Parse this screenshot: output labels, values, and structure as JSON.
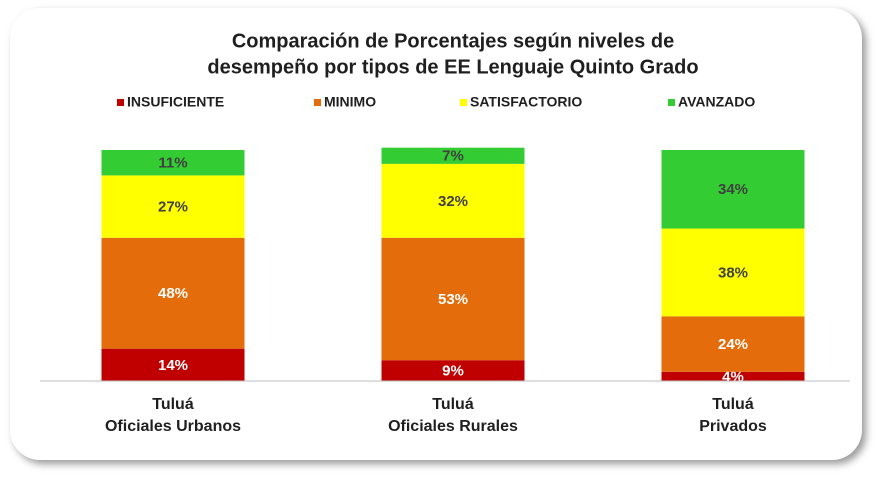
{
  "chart_data": {
    "type": "stacked_bar",
    "title": [
      "Comparación de Porcentajes según niveles de",
      "desempeño por tipos de EE Lenguaje Quinto Grado"
    ],
    "categories": [
      [
        "Tuluá",
        "Oficiales Urbanos"
      ],
      [
        "Tuluá",
        "Oficiales Rurales"
      ],
      [
        "Tuluá",
        "Privados"
      ]
    ],
    "series": [
      {
        "name": "INSUFICIENTE",
        "color": "#c00000",
        "values": [
          14,
          9,
          4
        ],
        "value_labels": [
          "14%",
          "9%",
          "4%"
        ]
      },
      {
        "name": "MINIMO",
        "color": "#e46c0a",
        "values": [
          48,
          53,
          24
        ],
        "value_labels": [
          "48%",
          "53%",
          "24%"
        ]
      },
      {
        "name": "SATISFACTORIO",
        "color": "#ffff00",
        "values": [
          27,
          32,
          38
        ],
        "value_labels": [
          "27%",
          "32%",
          "38%"
        ]
      },
      {
        "name": "AVANZADO",
        "color": "#33cc33",
        "values": [
          11,
          7,
          34
        ],
        "value_labels": [
          "11%",
          "7%",
          "34%"
        ]
      }
    ],
    "ylim": [
      0,
      100
    ],
    "legend": "top"
  }
}
